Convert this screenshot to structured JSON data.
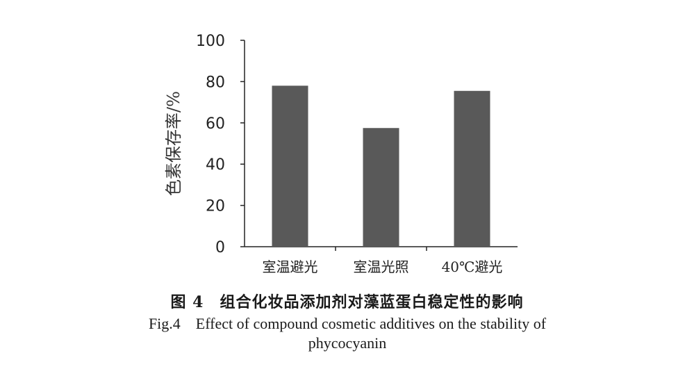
{
  "chart_data": {
    "type": "bar",
    "categories": [
      "室温避光",
      "室温光照",
      "40℃避光"
    ],
    "values": [
      78,
      57.5,
      75.5
    ],
    "xlabel": "",
    "ylabel": "色素保存率/%",
    "ylim": [
      0,
      100
    ],
    "yticks": [
      "0",
      "20",
      "40",
      "60",
      "80",
      "100"
    ],
    "grid": false,
    "bar_color": "#595959"
  },
  "caption": {
    "cn": "图 4　组合化妆品添加剂对藻蓝蛋白稳定性的影响",
    "en": "Fig.4　Effect of compound cosmetic additives on the stability of phycocyanin"
  }
}
